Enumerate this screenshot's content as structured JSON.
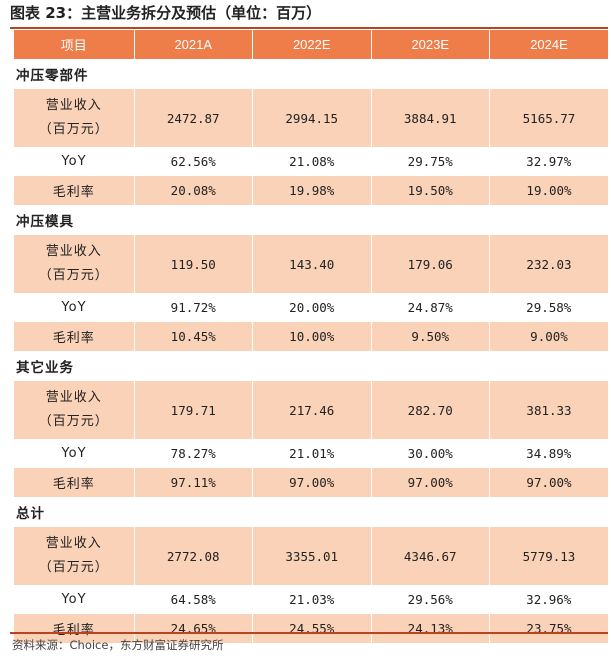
{
  "title": "图表 23：主营业务拆分及预估（单位：百万）",
  "header": [
    "项目",
    "2021A",
    "2022E",
    "2023E",
    "2024E"
  ],
  "sections": [
    {
      "name": "冲压零部件",
      "revenue_label_1": "营业收入",
      "revenue_label_2": "（百万元）",
      "revenue": [
        "2472.87",
        "2994.15",
        "3884.91",
        "5165.77"
      ],
      "yoy_label": "YoY",
      "yoy": [
        "62.56%",
        "21.08%",
        "29.75%",
        "32.97%"
      ],
      "gm_label": "毛利率",
      "gm": [
        "20.08%",
        "19.98%",
        "19.50%",
        "19.00%"
      ]
    },
    {
      "name": "冲压模具",
      "revenue_label_1": "营业收入",
      "revenue_label_2": "（百万元）",
      "revenue": [
        "119.50",
        "143.40",
        "179.06",
        "232.03"
      ],
      "yoy_label": "YoY",
      "yoy": [
        "91.72%",
        "20.00%",
        "24.87%",
        "29.58%"
      ],
      "gm_label": "毛利率",
      "gm": [
        "10.45%",
        "10.00%",
        "9.50%",
        "9.00%"
      ]
    },
    {
      "name": "其它业务",
      "revenue_label_1": "营业收入",
      "revenue_label_2": "（百万元）",
      "revenue": [
        "179.71",
        "217.46",
        "282.70",
        "381.33"
      ],
      "yoy_label": "YoY",
      "yoy": [
        "78.27%",
        "21.01%",
        "30.00%",
        "34.89%"
      ],
      "gm_label": "毛利率",
      "gm": [
        "97.11%",
        "97.00%",
        "97.00%",
        "97.00%"
      ]
    },
    {
      "name": "总计",
      "revenue_label_1": "营业收入",
      "revenue_label_2": "（百万元）",
      "revenue": [
        "2772.08",
        "3355.01",
        "4346.67",
        "5779.13"
      ],
      "yoy_label": "YoY",
      "yoy": [
        "64.58%",
        "21.03%",
        "29.56%",
        "32.96%"
      ],
      "gm_label": "毛利率",
      "gm": [
        "24.65%",
        "24.55%",
        "24.13%",
        "23.75%"
      ]
    }
  ],
  "source": "资料来源：Choice，东方财富证券研究所",
  "colors": {
    "header_bg": "#ee7d4a",
    "row_bg": "#fad2b8",
    "rule": "#b84520"
  }
}
